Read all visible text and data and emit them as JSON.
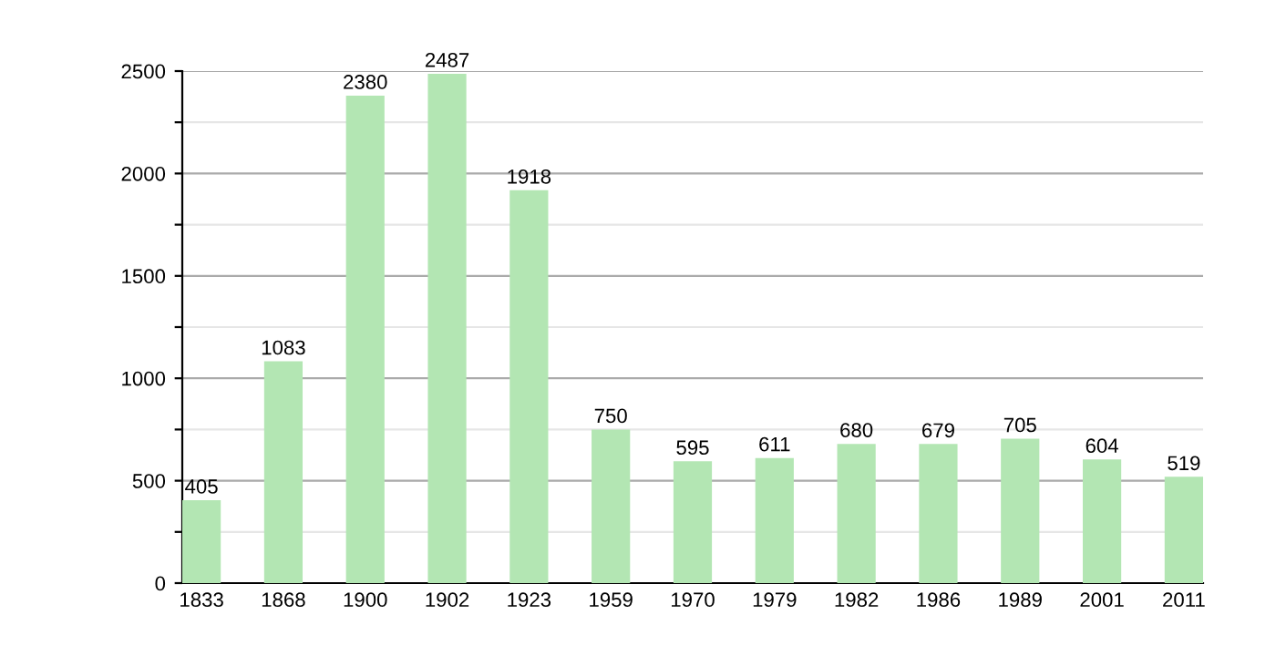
{
  "chart_data": {
    "type": "bar",
    "categories": [
      "1833",
      "1868",
      "1900",
      "1902",
      "1923",
      "1959",
      "1970",
      "1979",
      "1982",
      "1986",
      "1989",
      "2001",
      "2011"
    ],
    "values": [
      405,
      1083,
      2380,
      2487,
      1918,
      750,
      595,
      611,
      680,
      679,
      705,
      604,
      519
    ],
    "color": "#b3e6b3",
    "ylim": [
      0,
      2500
    ],
    "yticks": [
      0,
      {
        "value": 250,
        "label": null
      },
      500,
      {
        "value": 750,
        "label": null
      },
      1000,
      {
        "value": 1250,
        "label": null
      },
      1500,
      {
        "value": 1750,
        "label": null
      },
      2000,
      {
        "value": 2250,
        "label": null
      },
      2500
    ],
    "grid": "y",
    "data_labels": true
  }
}
